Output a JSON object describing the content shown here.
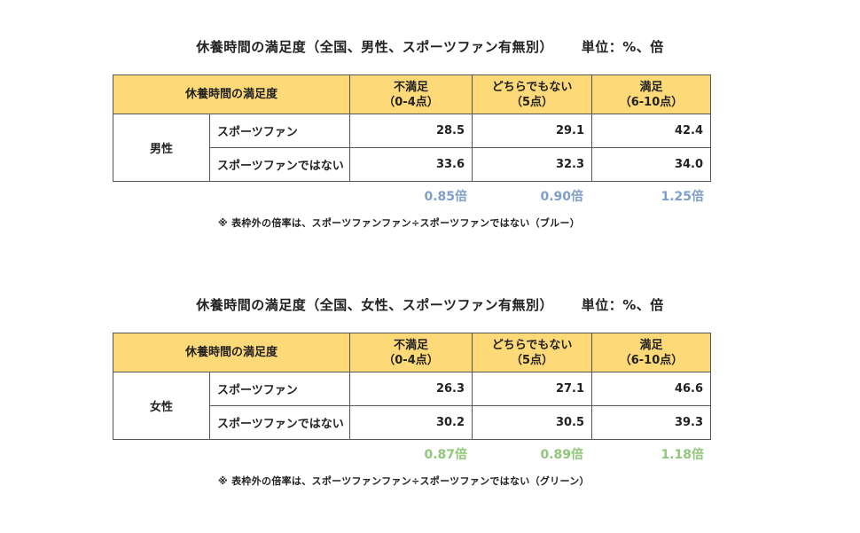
{
  "colors": {
    "header_bg": "#fdd978",
    "ratio_blue": "#7f9fc8",
    "ratio_green": "#8fc87a"
  },
  "tables": [
    {
      "title": "休養時間の満足度（全国、男性、スポーツファン有無別）",
      "unit": "単位：%、倍",
      "header": {
        "label": "休養時間の満足度",
        "col1_line1": "不満足",
        "col1_line2": "（0-4点）",
        "col2_line1": "どちらでもない",
        "col2_line2": "（5点）",
        "col3_line1": "満足",
        "col3_line2": "（6-10点）"
      },
      "gender": "男性",
      "rows": [
        {
          "label": "スポーツファン",
          "v1": "28.5",
          "v2": "29.1",
          "v3": "42.4"
        },
        {
          "label": "スポーツファンではない",
          "v1": "33.6",
          "v2": "32.3",
          "v3": "34.0"
        }
      ],
      "ratios": [
        "0.85倍",
        "0.90倍",
        "1.25倍"
      ],
      "ratio_color": "#7f9fc8",
      "note": "※ 表枠外の倍率は、スポーツファンファン÷スポーツファンではない（ブルー）"
    },
    {
      "title": "休養時間の満足度（全国、女性、スポーツファン有無別）",
      "unit": "単位：%、倍",
      "header": {
        "label": "休養時間の満足度",
        "col1_line1": "不満足",
        "col1_line2": "（0-4点）",
        "col2_line1": "どちらでもない",
        "col2_line2": "（5点）",
        "col3_line1": "満足",
        "col3_line2": "（6-10点）"
      },
      "gender": "女性",
      "rows": [
        {
          "label": "スポーツファン",
          "v1": "26.3",
          "v2": "27.1",
          "v3": "46.6"
        },
        {
          "label": "スポーツファンではない",
          "v1": "30.2",
          "v2": "30.5",
          "v3": "39.3"
        }
      ],
      "ratios": [
        "0.87倍",
        "0.89倍",
        "1.18倍"
      ],
      "ratio_color": "#8fc87a",
      "note": "※ 表枠外の倍率は、スポーツファンファン÷スポーツファンではない（グリーン）"
    }
  ]
}
